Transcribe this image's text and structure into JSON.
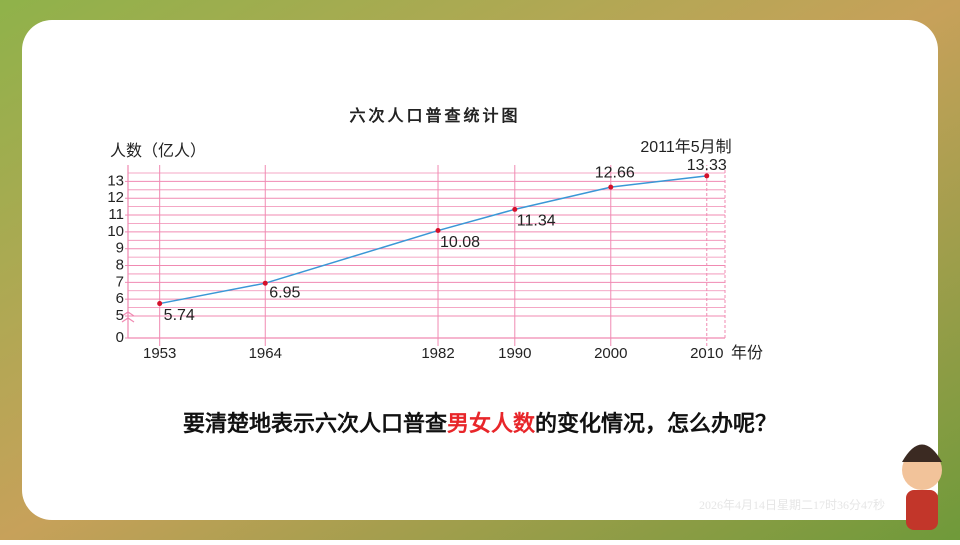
{
  "chart_data": {
    "type": "line",
    "title": "六次人口普查统计图",
    "y_label": "人数（亿人）",
    "x_label": "年份",
    "note": "2011年5月制",
    "x": [
      1953,
      1964,
      1982,
      1990,
      2000,
      2010
    ],
    "values": [
      5.74,
      6.95,
      10.08,
      11.34,
      12.66,
      13.33
    ],
    "line_color": "#3a97d6",
    "point_color": "#d4102a",
    "grid_color": "#f08ab2",
    "grid": true,
    "y_break": true,
    "xlim": [
      1949.7,
      2011.9
    ],
    "ylim": [
      0,
      13.5
    ],
    "yticks": [
      0,
      5,
      6,
      7,
      8,
      9,
      10,
      11,
      12,
      13
    ]
  },
  "question": {
    "before": "要清楚地表示六次人口普查",
    "highlight": "男女人数",
    "after": "的变化情况，怎么办呢？"
  },
  "timestamp": "2026年4月14日星期二17时36分47秒"
}
